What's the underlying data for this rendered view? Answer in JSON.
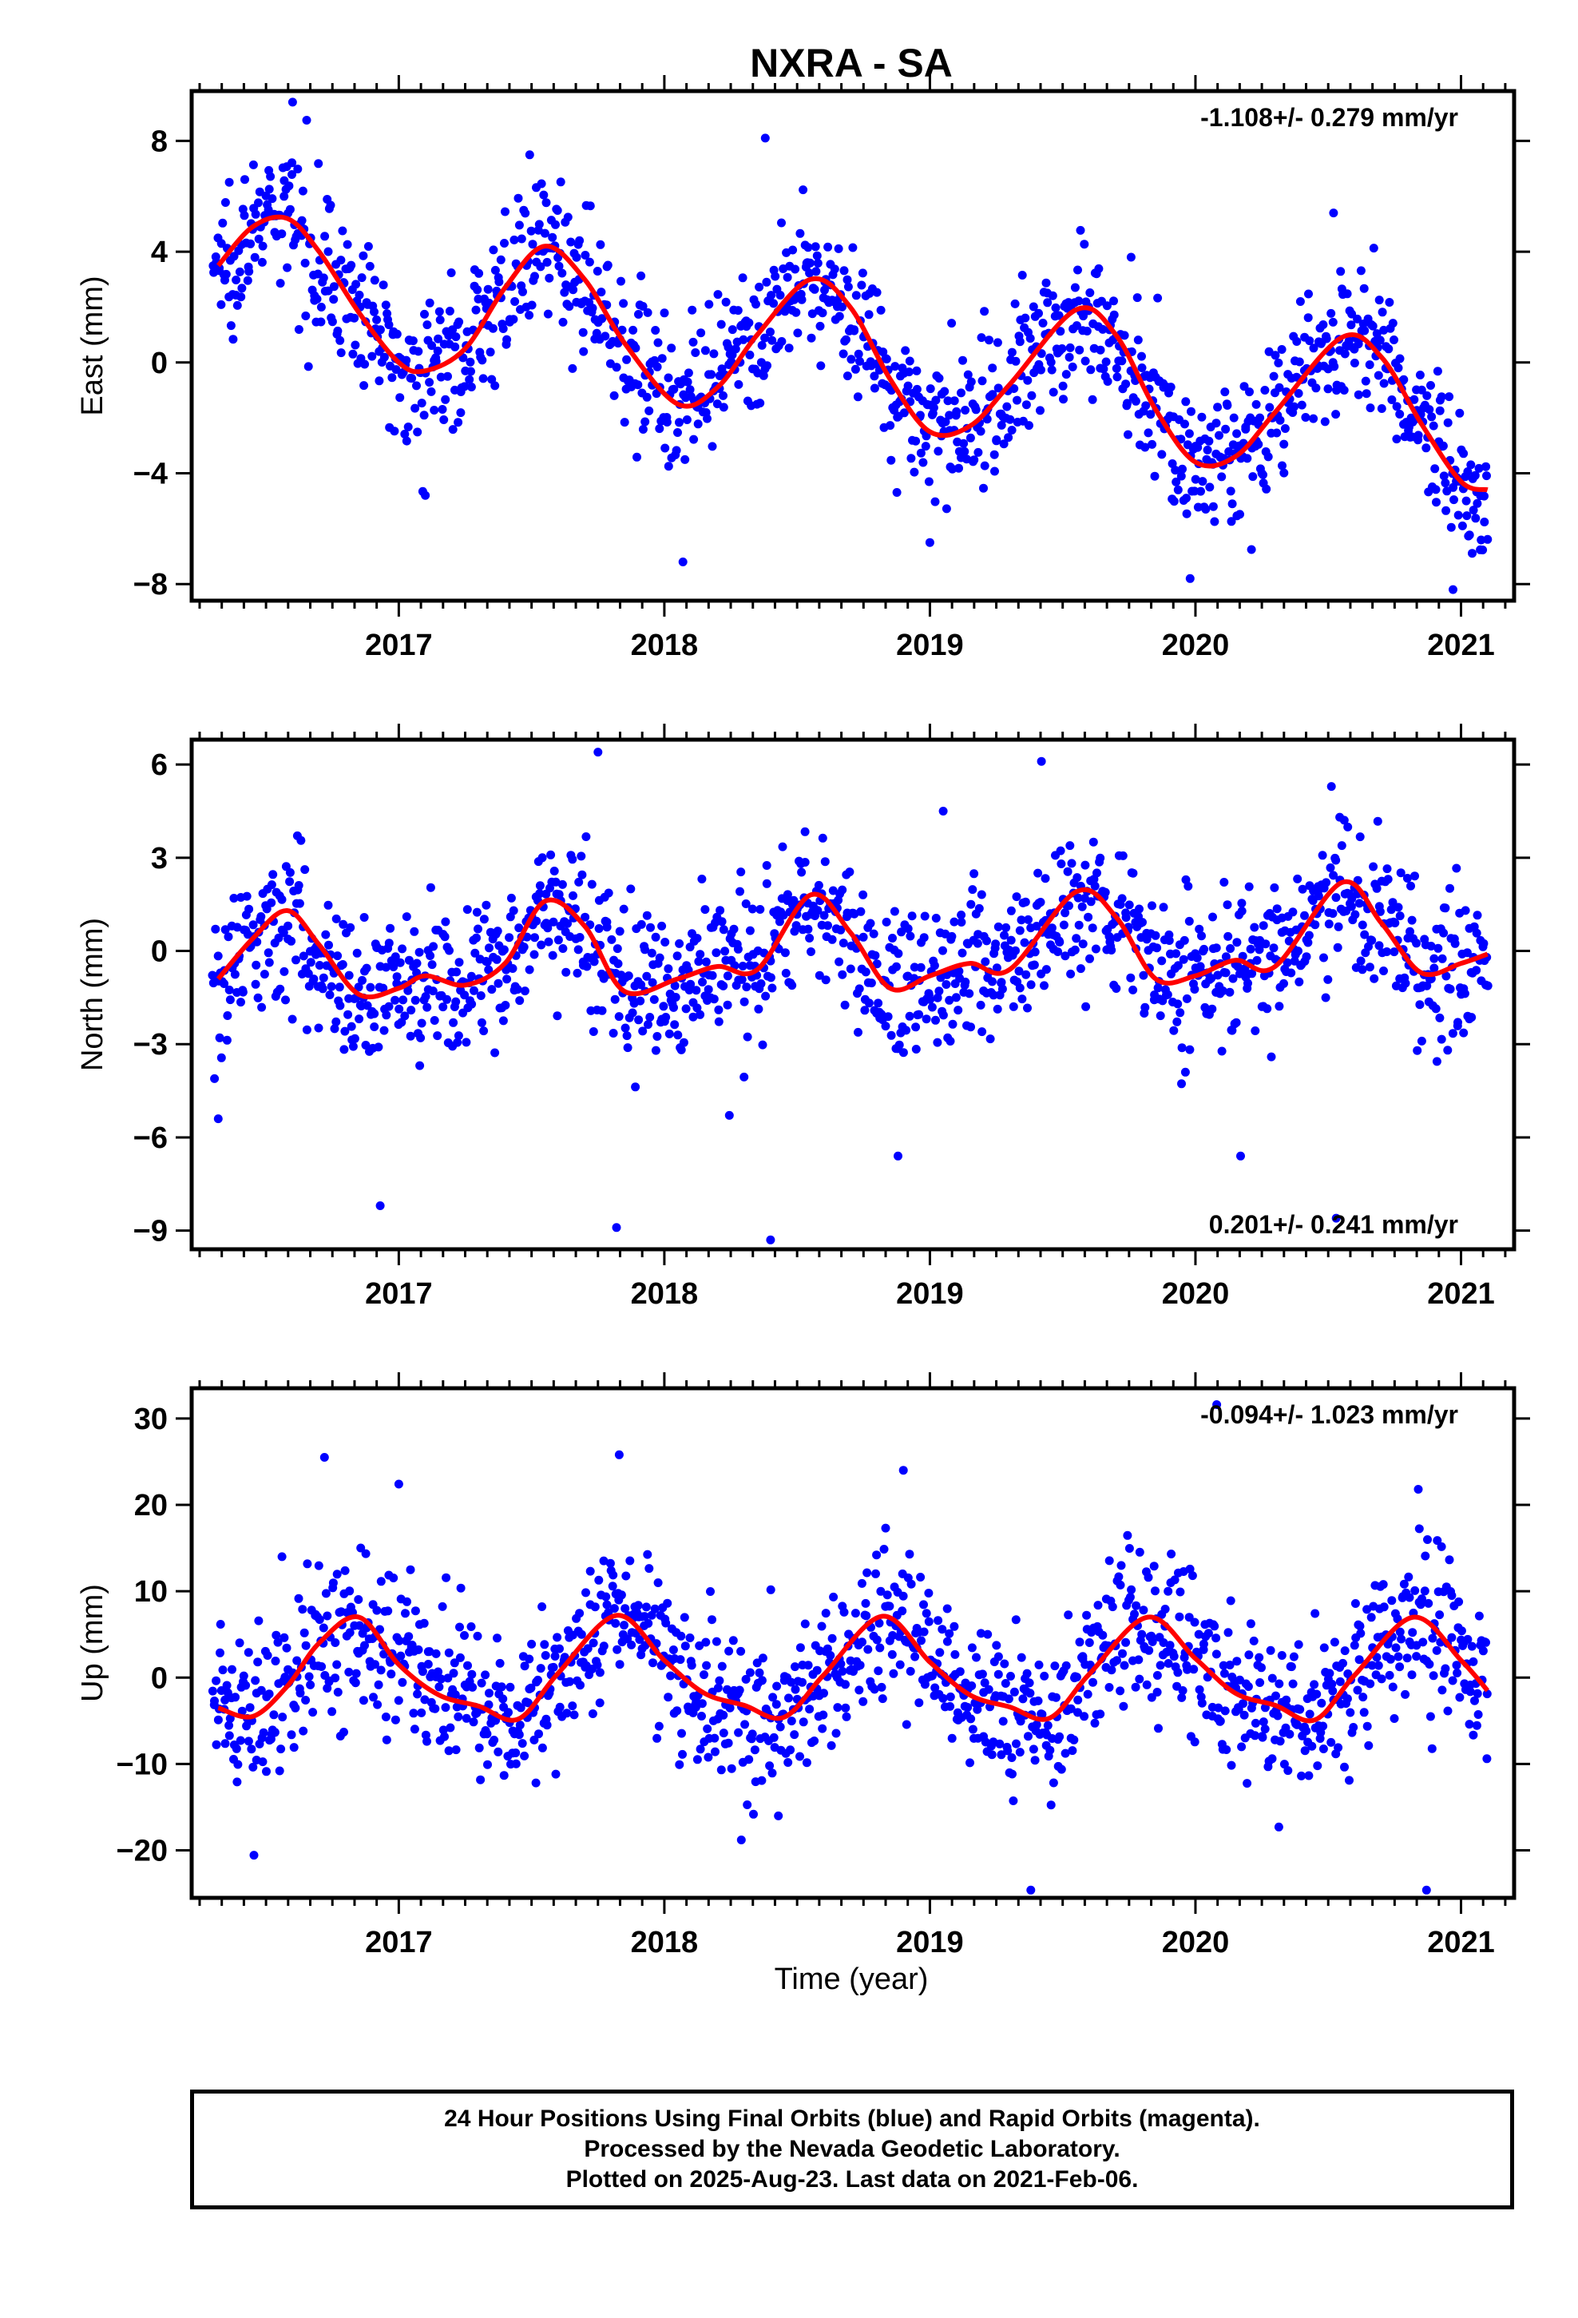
{
  "figure": {
    "title": "NXRA - SA",
    "xlabel": "Time (year)"
  },
  "colors": {
    "data": "#0000ff",
    "model": "#ff0000",
    "frame": "#000000"
  },
  "footer": {
    "lines": [
      "24 Hour Positions Using Final Orbits (blue) and Rapid Orbits (magenta).",
      "Processed by the Nevada Geodetic Laboratory.",
      "Plotted on 2025-Aug-23. Last data on 2021-Feb-06."
    ]
  },
  "chart_data": [
    {
      "type": "scatter",
      "name": "east",
      "ylabel": "East (mm)",
      "rate_text": "-1.108+/- 0.279 mm/yr",
      "rate_position": "top-right",
      "xlim": [
        2016.22,
        2021.2
      ],
      "ylim": [
        -8.6,
        9.8
      ],
      "xticks": [
        2017,
        2018,
        2019,
        2020,
        2021
      ],
      "xtick_labels": [
        "2017",
        "2018",
        "2019",
        "2020",
        "2021"
      ],
      "yticks": [
        -8,
        -4,
        0,
        4,
        8
      ],
      "ytick_labels": [
        "−8",
        "−4",
        "0",
        "4",
        "8"
      ],
      "model": {
        "x": [
          2016.32,
          2016.45,
          2016.58,
          2016.7,
          2016.85,
          2017.0,
          2017.1,
          2017.25,
          2017.4,
          2017.55,
          2017.7,
          2017.85,
          2018.05,
          2018.2,
          2018.35,
          2018.55,
          2018.7,
          2018.85,
          2019.0,
          2019.15,
          2019.3,
          2019.55,
          2019.7,
          2019.85,
          2020.0,
          2020.15,
          2020.3,
          2020.55,
          2020.7,
          2020.85,
          2021.0,
          2021.1
        ],
        "y": [
          3.5,
          4.9,
          5.2,
          4.0,
          1.8,
          0.0,
          -0.3,
          0.5,
          2.7,
          4.2,
          3.0,
          0.7,
          -1.5,
          -0.9,
          1.0,
          3.0,
          2.0,
          -0.6,
          -2.5,
          -2.3,
          -0.8,
          1.9,
          1.0,
          -1.7,
          -3.6,
          -3.4,
          -1.8,
          0.9,
          0.2,
          -2.2,
          -4.3,
          -4.6
        ]
      },
      "points": {
        "amplitude": 4.2,
        "phase_peak": 0.55,
        "trend": -1.108,
        "offset": 0.8,
        "scatter": 1.3,
        "n": 1300,
        "outliers_x": [
          2016.6,
          2018.38,
          2018.07,
          2019.98,
          2020.97,
          2020.52,
          2019.0,
          2017.1
        ],
        "outliers_y": [
          9.4,
          8.1,
          -7.2,
          -7.8,
          -8.2,
          5.4,
          -6.5,
          -4.8
        ]
      }
    },
    {
      "type": "scatter",
      "name": "north",
      "ylabel": "North (mm)",
      "rate_text": "0.201+/- 0.241 mm/yr",
      "rate_position": "bottom-right",
      "xlim": [
        2016.22,
        2021.2
      ],
      "ylim": [
        -9.6,
        6.8
      ],
      "xticks": [
        2017,
        2018,
        2019,
        2020,
        2021
      ],
      "xtick_labels": [
        "2017",
        "2018",
        "2019",
        "2020",
        "2021"
      ],
      "yticks": [
        -9,
        -6,
        -3,
        0,
        3,
        6
      ],
      "ytick_labels": [
        "−9",
        "−6",
        "−3",
        "0",
        "3",
        "6"
      ],
      "model": {
        "x": [
          2016.32,
          2016.45,
          2016.58,
          2016.7,
          2016.85,
          2017.0,
          2017.1,
          2017.25,
          2017.4,
          2017.55,
          2017.7,
          2017.85,
          2018.05,
          2018.2,
          2018.35,
          2018.55,
          2018.7,
          2018.85,
          2019.0,
          2019.15,
          2019.3,
          2019.55,
          2019.7,
          2019.85,
          2020.0,
          2020.15,
          2020.3,
          2020.55,
          2020.7,
          2020.85,
          2021.0,
          2021.1
        ],
        "y": [
          -0.9,
          0.4,
          1.3,
          0.2,
          -1.4,
          -1.2,
          -0.8,
          -1.1,
          -0.4,
          1.6,
          0.8,
          -1.3,
          -0.9,
          -0.5,
          -0.6,
          1.8,
          0.6,
          -1.2,
          -0.8,
          -0.4,
          -0.6,
          1.9,
          1.1,
          -0.9,
          -0.8,
          -0.3,
          -0.5,
          2.2,
          0.9,
          -0.7,
          -0.4,
          -0.1
        ]
      },
      "points": {
        "amplitude": 1.6,
        "phase_peak": 0.57,
        "trend": 0.201,
        "offset": 0.0,
        "scatter": 1.2,
        "n": 1300,
        "outliers_x": [
          2016.93,
          2017.82,
          2018.4,
          2018.88,
          2019.42,
          2017.75,
          2016.32,
          2020.53,
          2020.17,
          2019.05
        ],
        "outliers_y": [
          -8.2,
          -8.9,
          -9.3,
          -6.6,
          6.1,
          6.4,
          -5.4,
          -8.6,
          -6.6,
          4.5
        ]
      }
    },
    {
      "type": "scatter",
      "name": "up",
      "ylabel": "Up (mm)",
      "rate_text": "-0.094+/- 1.023 mm/yr",
      "rate_position": "top-right",
      "xlim": [
        2016.22,
        2021.2
      ],
      "ylim": [
        -25.5,
        33.5
      ],
      "xticks": [
        2017,
        2018,
        2019,
        2020,
        2021
      ],
      "xtick_labels": [
        "2017",
        "2018",
        "2019",
        "2020",
        "2021"
      ],
      "yticks": [
        -20,
        -10,
        0,
        10,
        20,
        30
      ],
      "ytick_labels": [
        "−20",
        "−10",
        "0",
        "10",
        "20",
        "30"
      ],
      "model": {
        "x": [
          2016.32,
          2016.45,
          2016.58,
          2016.7,
          2016.85,
          2017.0,
          2017.15,
          2017.3,
          2017.45,
          2017.6,
          2017.82,
          2018.0,
          2018.15,
          2018.3,
          2018.45,
          2018.6,
          2018.82,
          2019.0,
          2019.15,
          2019.3,
          2019.45,
          2019.6,
          2019.82,
          2020.0,
          2020.15,
          2020.3,
          2020.45,
          2020.6,
          2020.82,
          2021.0,
          2021.1
        ],
        "y": [
          -3.5,
          -4.5,
          -1.0,
          4.0,
          7.0,
          1.5,
          -2.0,
          -3.3,
          -4.8,
          0.5,
          7.2,
          2.0,
          -1.8,
          -3.2,
          -4.6,
          0.3,
          7.1,
          1.8,
          -2.0,
          -3.4,
          -4.7,
          0.4,
          7.0,
          2.2,
          -1.8,
          -3.2,
          -4.9,
          0.3,
          7.0,
          2.0,
          -1.5
        ]
      },
      "points": {
        "amplitude": 6.0,
        "phase_peak": 0.82,
        "trend": -0.094,
        "offset": 0.0,
        "scatter": 4.5,
        "n": 1300,
        "outliers_x": [
          2016.72,
          2017.83,
          2018.9,
          2019.38,
          2020.87,
          2020.08,
          2017.0,
          2018.29
        ],
        "outliers_y": [
          25.5,
          25.8,
          24.0,
          -24.6,
          -24.6,
          31.6,
          22.4,
          -18.8
        ]
      }
    }
  ]
}
